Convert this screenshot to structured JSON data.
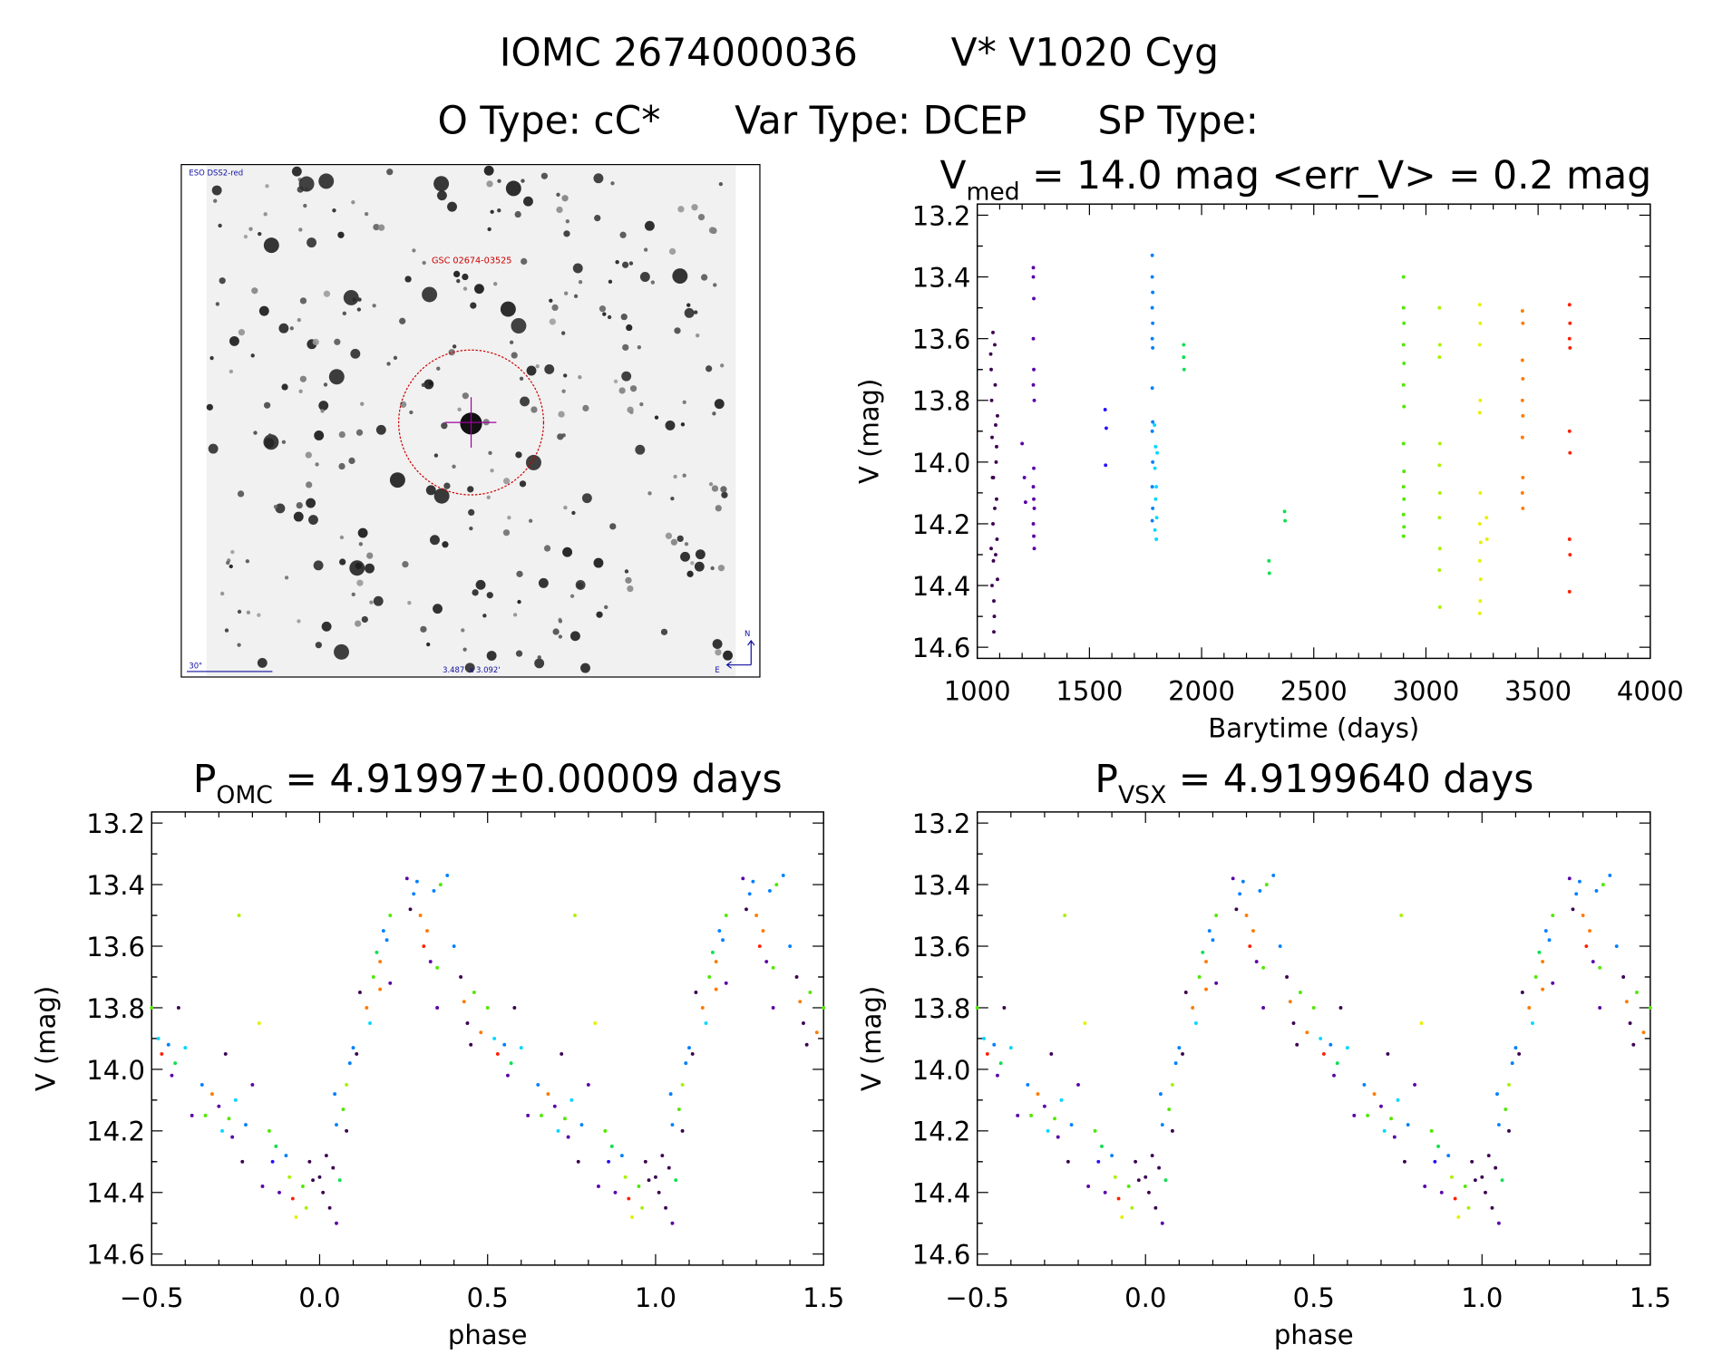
{
  "header": {
    "line1_id": "IOMC 2674000036",
    "line1_name": "V* V1020 Cyg",
    "line2_otype": "O Type: cC*",
    "line2_vartype": "Var Type: DCEP",
    "line2_sptype": "SP Type:"
  },
  "finder_image": {
    "survey_label": "ESO DSS2-red",
    "target_label": "GSC 02674-03525",
    "scale_label": "30\"",
    "fov_label": "3.487' x 3.092'",
    "north_label": "N",
    "east_label": "E",
    "circle_color": "#cc0000",
    "label_color": "#1010a0"
  },
  "group_colors": [
    "#3c0050",
    "#5a00a8",
    "#2a10ff",
    "#0080ff",
    "#00d8ff",
    "#10e050",
    "#50e800",
    "#a8f000",
    "#e8f000",
    "#ff7a00",
    "#ff2000"
  ],
  "chart_data": [
    {
      "type": "scatter",
      "title_main": "V",
      "title_sub": "med",
      "title_rest": " = 14.0 mag <err_V> = 0.2 mag",
      "xlabel": "Barytime (days)",
      "ylabel": "V (mag)",
      "xlim": [
        1000,
        4000
      ],
      "ylim": [
        14.636,
        13.164
      ],
      "xticks": [
        "1000",
        "1500",
        "2000",
        "2500",
        "3000",
        "3500",
        "4000"
      ],
      "yticks": [
        "13.2",
        "13.4",
        "13.6",
        "13.8",
        "14.0",
        "14.2",
        "14.4",
        "14.6"
      ],
      "series": [
        {
          "group": 0,
          "points": [
            [
              1060,
              13.65
            ],
            [
              1062,
              13.7
            ],
            [
              1064,
              13.8
            ],
            [
              1066,
              13.92
            ],
            [
              1068,
              14.05
            ],
            [
              1070,
              14.2
            ],
            [
              1072,
              14.32
            ],
            [
              1074,
              14.45
            ],
            [
              1076,
              14.5
            ],
            [
              1078,
              13.62
            ],
            [
              1080,
              13.75
            ],
            [
              1082,
              13.88
            ],
            [
              1084,
              14.0
            ],
            [
              1086,
              14.12
            ],
            [
              1088,
              14.25
            ],
            [
              1090,
              14.38
            ],
            [
              1070,
              13.58
            ],
            [
              1074,
              14.55
            ],
            [
              1082,
              14.3
            ],
            [
              1066,
              14.4
            ],
            [
              1086,
              13.95
            ],
            [
              1078,
              14.15
            ],
            [
              1062,
              14.28
            ],
            [
              1090,
              13.85
            ],
            [
              1072,
              14.05
            ]
          ]
        },
        {
          "group": 1,
          "points": [
            [
              1250,
              13.37
            ],
            [
              1250,
              13.4
            ],
            [
              1252,
              13.47
            ],
            [
              1250,
              13.6
            ],
            [
              1252,
              13.7
            ],
            [
              1250,
              13.75
            ],
            [
              1254,
              13.8
            ],
            [
              1252,
              14.02
            ],
            [
              1250,
              14.08
            ],
            [
              1252,
              14.12
            ],
            [
              1254,
              14.15
            ],
            [
              1250,
              14.2
            ],
            [
              1252,
              14.24
            ],
            [
              1254,
              14.28
            ],
            [
              1200,
              13.94
            ],
            [
              1210,
              14.05
            ],
            [
              1215,
              14.13
            ]
          ]
        },
        {
          "group": 2,
          "points": [
            [
              1570,
              13.83
            ],
            [
              1575,
              13.89
            ],
            [
              1572,
              14.01
            ]
          ]
        },
        {
          "group": 3,
          "points": [
            [
              1780,
              13.33
            ],
            [
              1780,
              13.4
            ],
            [
              1782,
              13.45
            ],
            [
              1780,
              13.5
            ],
            [
              1782,
              13.55
            ],
            [
              1780,
              13.6
            ],
            [
              1782,
              13.63
            ],
            [
              1780,
              13.76
            ],
            [
              1782,
              13.87
            ],
            [
              1780,
              13.9
            ],
            [
              1782,
              14.0
            ],
            [
              1780,
              14.08
            ],
            [
              1782,
              14.15
            ],
            [
              1780,
              14.19
            ]
          ]
        },
        {
          "group": 4,
          "points": [
            [
              1790,
              13.88
            ],
            [
              1795,
              13.95
            ],
            [
              1792,
              14.02
            ],
            [
              1798,
              14.08
            ],
            [
              1795,
              14.12
            ],
            [
              1800,
              14.18
            ],
            [
              1792,
              14.22
            ],
            [
              1798,
              14.25
            ],
            [
              1802,
              13.97
            ]
          ]
        },
        {
          "group": 5,
          "points": [
            [
              1920,
              13.62
            ],
            [
              1920,
              13.66
            ],
            [
              1922,
              13.7
            ],
            [
              2300,
              14.32
            ],
            [
              2302,
              14.36
            ],
            [
              2370,
              14.16
            ],
            [
              2372,
              14.19
            ]
          ]
        },
        {
          "group": 6,
          "points": [
            [
              2900,
              13.4
            ],
            [
              2900,
              13.5
            ],
            [
              2902,
              13.55
            ],
            [
              2900,
              13.62
            ],
            [
              2902,
              13.68
            ],
            [
              2900,
              13.75
            ],
            [
              2902,
              13.82
            ],
            [
              2900,
              13.94
            ],
            [
              2902,
              14.03
            ],
            [
              2900,
              14.08
            ],
            [
              2902,
              14.12
            ],
            [
              2900,
              14.17
            ],
            [
              2902,
              14.21
            ],
            [
              2900,
              14.24
            ]
          ]
        },
        {
          "group": 7,
          "points": [
            [
              3060,
              13.5
            ],
            [
              3062,
              13.62
            ],
            [
              3060,
              13.66
            ],
            [
              3062,
              13.94
            ],
            [
              3060,
              14.01
            ],
            [
              3062,
              14.1
            ],
            [
              3060,
              14.18
            ],
            [
              3062,
              14.28
            ],
            [
              3060,
              14.35
            ],
            [
              3062,
              14.47
            ]
          ]
        },
        {
          "group": 8,
          "points": [
            [
              3240,
              13.49
            ],
            [
              3242,
              13.55
            ],
            [
              3240,
              13.62
            ],
            [
              3242,
              13.8
            ],
            [
              3240,
              13.84
            ],
            [
              3242,
              14.1
            ],
            [
              3240,
              14.2
            ],
            [
              3244,
              14.26
            ],
            [
              3240,
              14.32
            ],
            [
              3244,
              14.38
            ],
            [
              3242,
              14.45
            ],
            [
              3240,
              14.49
            ],
            [
              3270,
              14.18
            ],
            [
              3272,
              14.25
            ]
          ]
        },
        {
          "group": 9,
          "points": [
            [
              3430,
              13.51
            ],
            [
              3432,
              13.55
            ],
            [
              3430,
              13.67
            ],
            [
              3432,
              13.73
            ],
            [
              3430,
              13.8
            ],
            [
              3432,
              13.85
            ],
            [
              3430,
              13.92
            ],
            [
              3432,
              14.05
            ],
            [
              3430,
              14.1
            ],
            [
              3432,
              14.15
            ]
          ]
        },
        {
          "group": 10,
          "points": [
            [
              3640,
              13.49
            ],
            [
              3642,
              13.55
            ],
            [
              3640,
              13.6
            ],
            [
              3642,
              13.63
            ],
            [
              3640,
              13.9
            ],
            [
              3642,
              13.97
            ],
            [
              3640,
              14.25
            ],
            [
              3642,
              14.3
            ],
            [
              3640,
              14.42
            ]
          ]
        }
      ]
    },
    {
      "type": "scatter",
      "title_main": "P",
      "title_sub": "OMC",
      "title_rest": " = 4.91997±0.00009 days",
      "xlabel": "phase",
      "ylabel": "V (mag)",
      "xlim": [
        -0.5,
        1.5
      ],
      "ylim": [
        14.636,
        13.164
      ],
      "xticks": [
        "−0.5",
        "0.0",
        "0.5",
        "1.0",
        "1.5"
      ],
      "yticks": [
        "13.2",
        "13.4",
        "13.6",
        "13.8",
        "14.0",
        "14.2",
        "14.4",
        "14.6"
      ],
      "phase_points": [
        [
          0.0,
          14.35,
          0
        ],
        [
          0.01,
          14.4,
          0
        ],
        [
          0.02,
          14.28,
          0
        ],
        [
          0.03,
          14.45,
          0
        ],
        [
          0.04,
          14.32,
          0
        ],
        [
          0.05,
          14.5,
          1
        ],
        [
          0.06,
          14.36,
          5
        ],
        [
          0.045,
          14.08,
          3
        ],
        [
          0.05,
          14.18,
          3
        ],
        [
          0.07,
          14.13,
          6
        ],
        [
          0.08,
          14.2,
          0
        ],
        [
          0.08,
          14.05,
          7
        ],
        [
          0.09,
          13.98,
          3
        ],
        [
          0.1,
          13.93,
          3
        ],
        [
          0.11,
          13.95,
          0
        ],
        [
          0.12,
          13.75,
          0
        ],
        [
          0.14,
          13.8,
          9
        ],
        [
          0.15,
          13.85,
          4
        ],
        [
          0.16,
          13.7,
          6
        ],
        [
          0.17,
          13.62,
          5
        ],
        [
          0.18,
          13.65,
          9
        ],
        [
          0.19,
          13.55,
          3
        ],
        [
          0.2,
          13.58,
          3
        ],
        [
          0.21,
          13.5,
          6
        ],
        [
          0.21,
          13.72,
          1
        ],
        [
          0.18,
          13.74,
          9
        ],
        [
          0.26,
          13.38,
          1
        ],
        [
          0.27,
          13.48,
          0
        ],
        [
          0.28,
          13.43,
          3
        ],
        [
          0.29,
          13.39,
          3
        ],
        [
          0.3,
          13.5,
          9
        ],
        [
          0.31,
          13.6,
          10
        ],
        [
          0.32,
          13.55,
          9
        ],
        [
          0.33,
          13.65,
          1
        ],
        [
          0.34,
          13.42,
          3
        ],
        [
          0.35,
          13.67,
          6
        ],
        [
          0.36,
          13.4,
          6
        ],
        [
          0.38,
          13.37,
          3
        ],
        [
          0.4,
          13.6,
          3
        ],
        [
          0.35,
          13.8,
          1
        ],
        [
          0.42,
          13.7,
          0
        ],
        [
          0.43,
          13.78,
          9
        ],
        [
          0.44,
          13.85,
          0
        ],
        [
          0.45,
          13.92,
          0
        ],
        [
          0.46,
          13.75,
          6
        ],
        [
          0.48,
          13.88,
          9
        ],
        [
          0.5,
          13.8,
          6
        ],
        [
          0.52,
          13.9,
          4
        ],
        [
          0.53,
          13.95,
          10
        ],
        [
          0.55,
          13.92,
          3
        ],
        [
          0.57,
          13.98,
          5
        ],
        [
          0.6,
          13.93,
          4
        ],
        [
          0.58,
          13.8,
          0
        ],
        [
          0.56,
          14.02,
          1
        ],
        [
          0.62,
          14.15,
          1
        ],
        [
          0.65,
          14.05,
          3
        ],
        [
          0.66,
          14.15,
          6
        ],
        [
          0.68,
          14.08,
          9
        ],
        [
          0.7,
          14.12,
          1
        ],
        [
          0.71,
          14.2,
          4
        ],
        [
          0.72,
          13.95,
          0
        ],
        [
          0.73,
          14.16,
          6
        ],
        [
          0.74,
          14.22,
          1
        ],
        [
          0.75,
          14.1,
          4
        ],
        [
          0.76,
          13.5,
          7
        ],
        [
          0.77,
          14.3,
          0
        ],
        [
          0.78,
          14.18,
          3
        ],
        [
          0.8,
          14.05,
          1
        ],
        [
          0.82,
          13.85,
          8
        ],
        [
          0.83,
          14.38,
          1
        ],
        [
          0.85,
          14.2,
          6
        ],
        [
          0.86,
          14.3,
          2
        ],
        [
          0.87,
          14.25,
          5
        ],
        [
          0.88,
          14.4,
          1
        ],
        [
          0.9,
          14.28,
          3
        ],
        [
          0.91,
          14.35,
          7
        ],
        [
          0.92,
          14.42,
          10
        ],
        [
          0.93,
          14.48,
          8
        ],
        [
          0.95,
          14.38,
          6
        ],
        [
          0.96,
          14.45,
          7
        ],
        [
          0.97,
          14.3,
          0
        ],
        [
          0.98,
          14.36,
          0
        ]
      ]
    },
    {
      "type": "scatter",
      "title_main": "P",
      "title_sub": "VSX",
      "title_rest": " = 4.9199640 days",
      "xlabel": "phase",
      "ylabel": "V (mag)",
      "xlim": [
        -0.5,
        1.5
      ],
      "ylim": [
        14.636,
        13.164
      ],
      "xticks": [
        "−0.5",
        "0.0",
        "0.5",
        "1.0",
        "1.5"
      ],
      "yticks": [
        "13.2",
        "13.4",
        "13.6",
        "13.8",
        "14.0",
        "14.2",
        "14.4",
        "14.6"
      ],
      "phase_points_same_as": "P_OMC"
    }
  ]
}
